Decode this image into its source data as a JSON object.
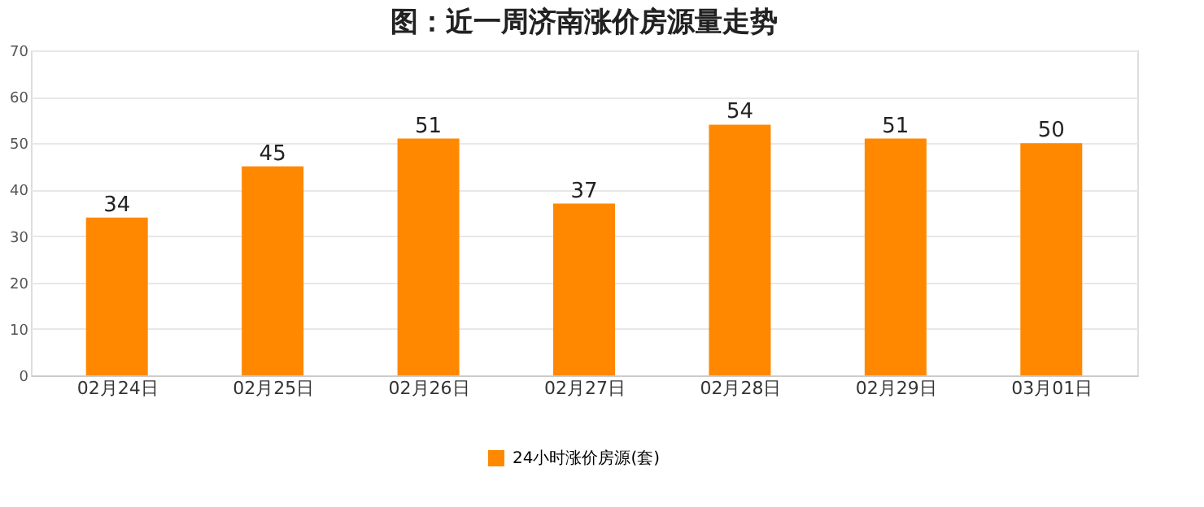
{
  "chart_data": {
    "type": "bar",
    "title": "图：近一周济南涨价房源量走势",
    "categories": [
      "02月24日",
      "02月25日",
      "02月26日",
      "02月27日",
      "02月28日",
      "02月29日",
      "03月01日"
    ],
    "series": [
      {
        "name": "24小时涨价房源(套)",
        "color": "#ff8800",
        "values": [
          34,
          45,
          51,
          37,
          54,
          51,
          50
        ]
      }
    ],
    "ylim": [
      0,
      70
    ],
    "yticks": [
      0,
      10,
      20,
      30,
      40,
      50,
      60,
      70
    ],
    "grid": "y",
    "legend": "bottom",
    "data_labels": true
  }
}
